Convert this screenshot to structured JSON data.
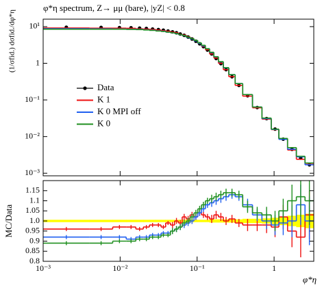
{
  "chart_data": [
    {
      "type": "histogram",
      "title": "φ*η spectrum, Z→ μμ (bare), |yZ| < 0.8",
      "y_label": "(1/σfid.) dσfid./dφ*η",
      "log_x": true,
      "log_y": true,
      "xlim": [
        0.001,
        3.277
      ],
      "ylim": [
        0.00085,
        16
      ],
      "yticks": [
        {
          "value": 10,
          "label": "10¹"
        },
        1,
        {
          "value": 0.1,
          "label": "10⁻¹"
        },
        {
          "value": 0.01,
          "label": "10⁻²"
        },
        {
          "value": 0.001,
          "label": "10⁻³"
        }
      ],
      "legend": "center-left",
      "bins": [
        0.001,
        0.004,
        0.008,
        0.012,
        0.016,
        0.02,
        0.024,
        0.029,
        0.034,
        0.039,
        0.045,
        0.051,
        0.057,
        0.064,
        0.072,
        0.081,
        0.091,
        0.102,
        0.114,
        0.128,
        0.145,
        0.165,
        0.189,
        0.219,
        0.258,
        0.312,
        0.391,
        0.524,
        0.695,
        0.918,
        1.153,
        1.496,
        1.947,
        2.522,
        3.277
      ],
      "series": [
        {
          "name": "Data",
          "color": "#000000",
          "style": "points",
          "values": [
            9.6,
            9.5,
            9.4,
            9.3,
            9.1,
            8.9,
            8.6,
            8.3,
            8.0,
            7.6,
            7.2,
            6.8,
            6.3,
            5.8,
            5.2,
            4.6,
            4.0,
            3.4,
            2.85,
            2.3,
            1.8,
            1.35,
            0.98,
            0.67,
            0.43,
            0.25,
            0.13,
            0.062,
            0.031,
            0.016,
            0.0085,
            0.0045,
            0.0026,
            0.0017
          ]
        },
        {
          "name": "K 1",
          "color": "#ee1111",
          "style": "step",
          "values": [
            9.2,
            9.1,
            9.1,
            9.0,
            8.7,
            8.6,
            8.4,
            8.1,
            7.8,
            7.5,
            7.1,
            6.8,
            6.2,
            5.9,
            5.3,
            4.7,
            4.1,
            3.5,
            2.9,
            2.35,
            1.8,
            1.39,
            1.0,
            0.67,
            0.43,
            0.25,
            0.127,
            0.061,
            0.03,
            0.0155,
            0.0087,
            0.0043,
            0.0024,
            0.00175
          ]
        },
        {
          "name": "K 0 MPI off",
          "color": "#1f5ff0",
          "style": "step",
          "values": [
            8.8,
            8.7,
            8.6,
            8.5,
            8.4,
            8.2,
            8.0,
            7.7,
            7.5,
            7.1,
            6.8,
            6.5,
            6.1,
            5.7,
            5.1,
            4.6,
            4.1,
            3.5,
            3.0,
            2.5,
            1.96,
            1.49,
            1.09,
            0.75,
            0.49,
            0.28,
            0.14,
            0.064,
            0.031,
            0.0157,
            0.0084,
            0.0045,
            0.0028,
            0.0017
          ]
        },
        {
          "name": "K 0",
          "color": "#1f8f1f",
          "style": "step",
          "values": [
            8.5,
            8.5,
            8.5,
            8.4,
            8.3,
            8.1,
            7.9,
            7.6,
            7.4,
            7.1,
            6.8,
            6.5,
            6.1,
            5.7,
            5.2,
            4.7,
            4.2,
            3.6,
            3.1,
            2.5,
            2.0,
            1.51,
            1.11,
            0.76,
            0.49,
            0.28,
            0.14,
            0.064,
            0.032,
            0.016,
            0.0089,
            0.005,
            0.0029,
            0.0019
          ]
        }
      ]
    },
    {
      "type": "histogram",
      "x_label": "φ*η",
      "y_label": "MC/Data",
      "log_x": true,
      "xlim": [
        0.001,
        3.277
      ],
      "xticks": [
        {
          "value": 0.001,
          "label": "10⁻³"
        },
        {
          "value": 0.01,
          "label": "10⁻²"
        },
        {
          "value": 0.1,
          "label": "10⁻¹"
        },
        1
      ],
      "ylim": [
        0.8,
        1.2
      ],
      "yticks": [
        0.8,
        0.85,
        0.9,
        0.95,
        {
          "value": 1,
          "label": "1.0"
        },
        1.05,
        1.1,
        1.15
      ],
      "bins": [
        0.001,
        0.004,
        0.008,
        0.012,
        0.016,
        0.02,
        0.024,
        0.029,
        0.034,
        0.039,
        0.045,
        0.051,
        0.057,
        0.064,
        0.072,
        0.081,
        0.091,
        0.102,
        0.114,
        0.128,
        0.145,
        0.165,
        0.189,
        0.219,
        0.258,
        0.312,
        0.391,
        0.524,
        0.695,
        0.918,
        1.153,
        1.496,
        1.947,
        2.522,
        3.277
      ],
      "series": [
        {
          "color": "#ffff00",
          "style": "band",
          "values": [
            1,
            1,
            1,
            1,
            1,
            1,
            1,
            1,
            1,
            1,
            1,
            1,
            1,
            1,
            1,
            1,
            1,
            1,
            1,
            1,
            1,
            1,
            1,
            1,
            1,
            1,
            1,
            1,
            1,
            1,
            1,
            1,
            1,
            1
          ],
          "errors": [
            0.005,
            0.005,
            0.005,
            0.005,
            0.005,
            0.005,
            0.005,
            0.005,
            0.005,
            0.005,
            0.005,
            0.005,
            0.005,
            0.005,
            0.005,
            0.005,
            0.005,
            0.005,
            0.005,
            0.005,
            0.007,
            0.007,
            0.007,
            0.007,
            0.007,
            0.007,
            0.01,
            0.01,
            0.012,
            0.015,
            0.02,
            0.025,
            0.03,
            0.035
          ]
        },
        {
          "color": "#ee1111",
          "style": "step",
          "values": [
            0.96,
            0.96,
            0.97,
            0.97,
            0.96,
            0.97,
            0.98,
            0.98,
            0.97,
            0.99,
            0.98,
            1.0,
            0.99,
            1.02,
            1.01,
            1.03,
            1.02,
            1.04,
            1.03,
            1.02,
            1.01,
            1.03,
            1.02,
            1.0,
            1.01,
            0.99,
            0.98,
            0.98,
            0.98,
            0.97,
            1.02,
            0.95,
            0.92,
            1.03
          ],
          "errors": [
            0.01,
            0.01,
            0.01,
            0.01,
            0.01,
            0.01,
            0.01,
            0.01,
            0.01,
            0.01,
            0.015,
            0.015,
            0.015,
            0.015,
            0.015,
            0.015,
            0.015,
            0.015,
            0.015,
            0.015,
            0.02,
            0.02,
            0.02,
            0.02,
            0.02,
            0.02,
            0.03,
            0.03,
            0.04,
            0.05,
            0.06,
            0.08,
            0.1,
            0.12
          ]
        },
        {
          "color": "#1f5ff0",
          "style": "step",
          "values": [
            0.92,
            0.92,
            0.92,
            0.91,
            0.92,
            0.92,
            0.93,
            0.93,
            0.94,
            0.94,
            0.95,
            0.96,
            0.97,
            0.98,
            0.99,
            1.0,
            1.02,
            1.04,
            1.06,
            1.08,
            1.09,
            1.1,
            1.11,
            1.12,
            1.13,
            1.12,
            1.08,
            1.03,
            1.0,
            0.98,
            0.99,
            1.0,
            1.08,
            1.0
          ],
          "errors": [
            0.01,
            0.01,
            0.01,
            0.01,
            0.01,
            0.01,
            0.01,
            0.01,
            0.01,
            0.01,
            0.015,
            0.015,
            0.015,
            0.015,
            0.015,
            0.015,
            0.015,
            0.015,
            0.015,
            0.015,
            0.02,
            0.02,
            0.02,
            0.02,
            0.02,
            0.02,
            0.03,
            0.03,
            0.04,
            0.05,
            0.06,
            0.08,
            0.1,
            0.12
          ]
        },
        {
          "color": "#1f8f1f",
          "style": "step",
          "values": [
            0.89,
            0.89,
            0.9,
            0.9,
            0.91,
            0.91,
            0.92,
            0.92,
            0.93,
            0.93,
            0.95,
            0.96,
            0.97,
            0.99,
            1.0,
            1.02,
            1.04,
            1.06,
            1.08,
            1.1,
            1.11,
            1.12,
            1.13,
            1.14,
            1.14,
            1.13,
            1.07,
            1.04,
            1.03,
            1.0,
            1.05,
            1.1,
            1.12,
            1.1
          ],
          "errors": [
            0.01,
            0.01,
            0.01,
            0.01,
            0.01,
            0.01,
            0.01,
            0.01,
            0.01,
            0.01,
            0.015,
            0.015,
            0.015,
            0.015,
            0.015,
            0.015,
            0.015,
            0.015,
            0.015,
            0.015,
            0.02,
            0.02,
            0.02,
            0.02,
            0.02,
            0.02,
            0.03,
            0.03,
            0.04,
            0.05,
            0.06,
            0.08,
            0.1,
            0.12
          ]
        }
      ]
    }
  ]
}
